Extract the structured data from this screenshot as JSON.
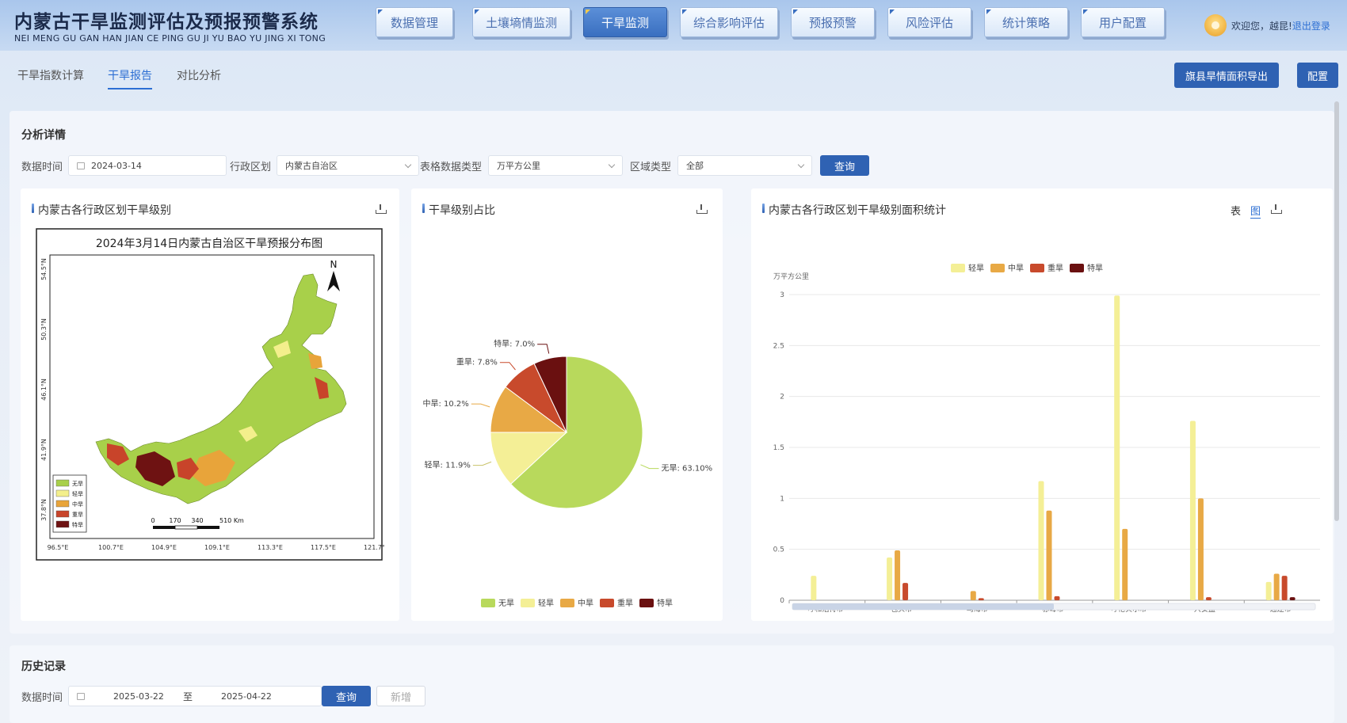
{
  "app": {
    "title_cn": "内蒙古干旱监测评估及预报预警系统",
    "title_en": "NEI MENG GU GAN HAN JIAN CE PING GU JI YU BAO YU JING XI TONG"
  },
  "nav": [
    {
      "label": "数据管理"
    },
    {
      "label": "土壤墒情监测"
    },
    {
      "label": "干旱监测"
    },
    {
      "label": "综合影响评估"
    },
    {
      "label": "预报预警"
    },
    {
      "label": "风险评估"
    },
    {
      "label": "统计策略"
    },
    {
      "label": "用户配置"
    }
  ],
  "user": {
    "welcome": "欢迎您，越昆!",
    "logout": "退出登录"
  },
  "subtabs": [
    {
      "label": "干旱指数计算"
    },
    {
      "label": "干旱报告"
    },
    {
      "label": "对比分析"
    }
  ],
  "actions": {
    "export": "旗县旱情面积导出",
    "config": "配置"
  },
  "analysis": {
    "title": "分析详情",
    "filters": {
      "date_label": "数据时间",
      "date_value": "2024-03-14",
      "region_label": "行政区划",
      "region_value": "内蒙古自治区",
      "unit_label": "表格数据类型",
      "unit_value": "万平方公里",
      "area_label": "区域类型",
      "area_value": "全部",
      "query": "查询"
    }
  },
  "map_card": {
    "title": "内蒙古各行政区划干旱级别",
    "map_title": "2024年3月14日内蒙古自治区干旱预报分布图",
    "north": "N",
    "lat_labels": [
      "54.5°N",
      "50.3°N",
      "46.1°N",
      "41.9°N",
      "37.8°N"
    ],
    "lon_labels": [
      "96.5°E",
      "100.7°E",
      "104.9°E",
      "109.1°E",
      "113.3°E",
      "117.5°E",
      "121.7°E"
    ],
    "scale_labels": [
      "0",
      "170",
      "340",
      "510 Km"
    ],
    "legend": [
      {
        "label": "无旱",
        "color": "#a8d04a"
      },
      {
        "label": "轻旱",
        "color": "#f3ef8c"
      },
      {
        "label": "中旱",
        "color": "#e8a43a"
      },
      {
        "label": "重旱",
        "color": "#c8442a"
      },
      {
        "label": "特旱",
        "color": "#6e1212"
      }
    ]
  },
  "pie_card": {
    "title": "干旱级别占比"
  },
  "bar_card": {
    "title": "内蒙古各行政区划干旱级别面积统计",
    "toggle_table": "表",
    "toggle_chart": "图"
  },
  "chart_data": [
    {
      "type": "pie",
      "title": "干旱级别占比",
      "slices": [
        {
          "name": "无旱",
          "value": 63.1,
          "label": "无旱: 63.10%",
          "color": "#b8d95c"
        },
        {
          "name": "轻旱",
          "value": 11.9,
          "label": "轻旱: 11.9%",
          "color": "#f4ef96"
        },
        {
          "name": "中旱",
          "value": 10.2,
          "label": "中旱: 10.2%",
          "color": "#e8a945"
        },
        {
          "name": "重旱",
          "value": 7.8,
          "label": "重旱: 7.8%",
          "color": "#c84a2c"
        },
        {
          "name": "特旱",
          "value": 7.0,
          "label": "特旱: 7.0%",
          "color": "#6a1010"
        }
      ],
      "legend_position": "bottom"
    },
    {
      "type": "bar",
      "title": "内蒙古各行政区划干旱级别面积统计",
      "ylabel": "万平方公里",
      "ylim": [
        0,
        3
      ],
      "yticks": [
        0,
        0.5,
        1,
        1.5,
        2,
        2.5,
        3
      ],
      "grid": true,
      "legend_position": "top",
      "categories": [
        "呼和浩特市",
        "包头市",
        "乌海市",
        "赤峰市",
        "呼伦贝尔市",
        "兴安盟",
        "通辽市"
      ],
      "series": [
        {
          "name": "轻旱",
          "color": "#f4ef96",
          "values": [
            0.24,
            0.42,
            0,
            1.17,
            2.99,
            1.76,
            0.18
          ]
        },
        {
          "name": "中旱",
          "color": "#e8a945",
          "values": [
            0,
            0.49,
            0.09,
            0.88,
            0.7,
            1.0,
            0.26
          ]
        },
        {
          "name": "重旱",
          "color": "#c84a2c",
          "values": [
            0,
            0.17,
            0.02,
            0.04,
            0,
            0.03,
            0.24
          ]
        },
        {
          "name": "特旱",
          "color": "#6a1010",
          "values": [
            0,
            0,
            0,
            0,
            0,
            0,
            0.03
          ]
        }
      ]
    }
  ],
  "history": {
    "title": "历史记录",
    "date_label": "数据时间",
    "start": "2025-03-22",
    "sep": "至",
    "end": "2025-04-22",
    "query": "查询",
    "add": "新增"
  }
}
